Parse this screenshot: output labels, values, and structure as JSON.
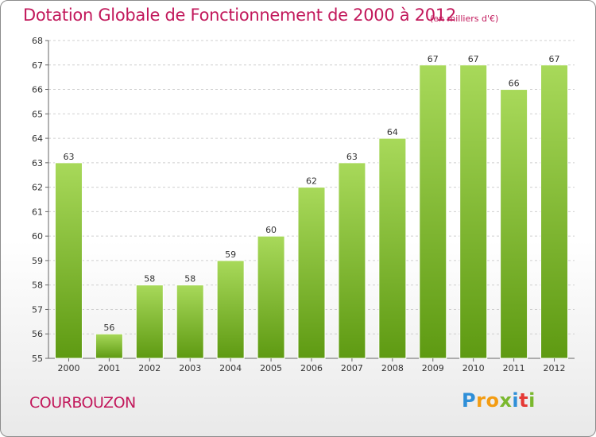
{
  "chart_data": {
    "type": "bar",
    "title": "Dotation Globale de Fonctionnement de 2000 à 2012",
    "unit_note": "(en milliers d'€)",
    "categories": [
      "2000",
      "2001",
      "2002",
      "2003",
      "2004",
      "2005",
      "2006",
      "2007",
      "2008",
      "2009",
      "2010",
      "2011",
      "2012"
    ],
    "values": [
      63,
      56,
      58,
      58,
      59,
      60,
      62,
      63,
      64,
      67,
      67,
      66,
      67
    ],
    "ylim": [
      55,
      68
    ],
    "yticks": [
      55,
      56,
      57,
      58,
      59,
      60,
      61,
      62,
      63,
      64,
      65,
      66,
      67,
      68
    ],
    "grid": true,
    "colors": {
      "bar_light": "#a8d95a",
      "bar_dark": "#5e9a12",
      "grid": "#cfcfcf",
      "accent": "#c2185b"
    }
  },
  "footer": {
    "commune": "COURBOUZON"
  },
  "logo": {
    "letters": [
      "P",
      "r",
      "o",
      "x",
      "i",
      "t",
      "i"
    ],
    "colors": [
      "#2f8fd8",
      "#f39c12",
      "#f39c12",
      "#7ab82e",
      "#2f8fd8",
      "#e53935",
      "#7ab82e"
    ]
  }
}
